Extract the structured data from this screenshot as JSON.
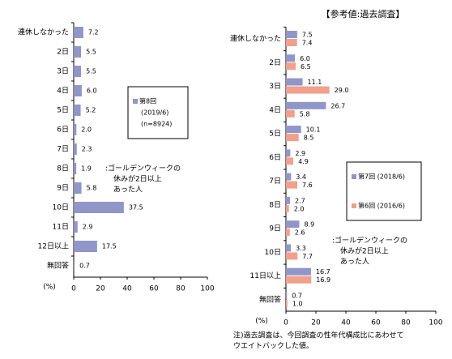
{
  "chart_data": [
    {
      "type": "hbar",
      "categories": [
        "連休しなかった",
        "2日",
        "3日",
        "4日",
        "5日",
        "6日",
        "7日",
        "8日",
        "9日",
        "10日",
        "11日",
        "12日以上",
        "無回答"
      ],
      "series": [
        {
          "name": "第8回",
          "color": "#9096c8",
          "values": [
            7.2,
            5.5,
            5.5,
            6.0,
            5.2,
            2.0,
            2.3,
            1.9,
            5.8,
            37.5,
            2.9,
            17.5,
            0.7
          ],
          "value_labels": [
            "7.2",
            "5.5",
            "5.5",
            "6.0",
            "5.2",
            "2.0",
            "2.3",
            "1.9",
            "5.8",
            "37.5",
            "2.9",
            "17.5",
            "0.7"
          ]
        }
      ],
      "legend_note": [
        "(2019/6)",
        "(n=8924)"
      ],
      "annotation": [
        ":ゴールデンウィークの",
        "休みが2日以上",
        "あった人"
      ],
      "xlabel": "(%)",
      "xlim": [
        0,
        100
      ],
      "xticks": [
        0,
        20,
        40,
        60,
        80,
        100
      ]
    },
    {
      "type": "hbar",
      "title": "【参考値:過去調査】",
      "categories": [
        "連休しなかった",
        "2日",
        "3日",
        "4日",
        "5日",
        "6日",
        "7日",
        "8日",
        "9日",
        "10日",
        "11日以上",
        "無回答"
      ],
      "series": [
        {
          "name": "第7回 (2018/6)",
          "color": "#9096c8",
          "values": [
            7.5,
            6.0,
            11.1,
            26.7,
            10.1,
            2.9,
            3.4,
            2.7,
            8.9,
            3.3,
            16.7,
            0.7
          ],
          "value_labels": [
            "7.5",
            "6.0",
            "11.1",
            "26.7",
            "10.1",
            "2.9",
            "3.4",
            "2.7",
            "8.9",
            "3.3",
            "16.7",
            "0.7"
          ]
        },
        {
          "name": "第6回 (2016/6)",
          "color": "#f0a08c",
          "values": [
            7.4,
            6.5,
            29.0,
            5.8,
            8.5,
            4.9,
            7.6,
            2.0,
            2.6,
            7.7,
            16.9,
            1.0
          ],
          "value_labels": [
            "7.4",
            "6.5",
            "29.0",
            "5.8",
            "8.5",
            "4.9",
            "7.6",
            "2.0",
            "2.6",
            "7.7",
            "16.9",
            "1.0"
          ]
        }
      ],
      "annotation": [
        ":ゴールデンウィークの",
        "休みが2日以上",
        "あった人"
      ],
      "xlabel": "(%)",
      "note": [
        "注)過去調査は、今回調査の性年代構成比にあわせて",
        "ウエイトバックした値。"
      ],
      "xlim": [
        0,
        100
      ],
      "xticks": [
        0,
        20,
        40,
        60,
        80,
        100
      ]
    }
  ]
}
